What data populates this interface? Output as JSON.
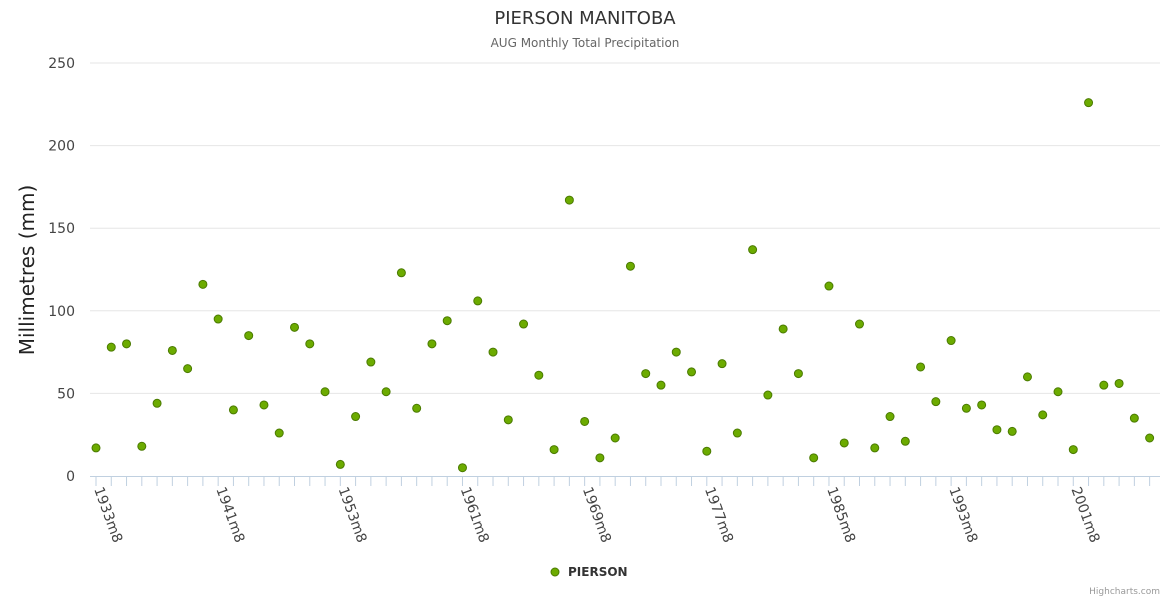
{
  "chart_data": {
    "type": "scatter",
    "title": "PIERSON MANITOBA",
    "subtitle": "AUG Monthly Total Precipitation",
    "ylabel": "Millimetres (mm)",
    "xlabel": "",
    "ylim": [
      0,
      250
    ],
    "yticks": [
      "0",
      "50",
      "100",
      "150",
      "200",
      "250"
    ],
    "xtick_labels": [
      "1933m8",
      "1941m8",
      "1953m8",
      "1961m8",
      "1969m8",
      "1977m8",
      "1985m8",
      "1993m8",
      "2001m8"
    ],
    "xtick_indices": [
      0,
      8,
      16,
      24,
      32,
      40,
      48,
      56,
      64
    ],
    "grid": true,
    "legend": "bottom-center",
    "credits": "Highcharts.com",
    "series": [
      {
        "name": "PIERSON",
        "color": "#6cab00",
        "stroke": "#4a7a00",
        "values": [
          17,
          78,
          80,
          18,
          44,
          76,
          65,
          116,
          95,
          40,
          85,
          43,
          26,
          90,
          80,
          51,
          7,
          36,
          69,
          51,
          123,
          41,
          80,
          94,
          5,
          106,
          75,
          34,
          92,
          61,
          16,
          167,
          33,
          11,
          23,
          127,
          62,
          55,
          75,
          63,
          15,
          68,
          26,
          137,
          49,
          89,
          62,
          11,
          115,
          20,
          92,
          17,
          36,
          21,
          66,
          45,
          82,
          41,
          43,
          28,
          27,
          60,
          37,
          51,
          16,
          226,
          55,
          56,
          35,
          23
        ]
      }
    ]
  }
}
